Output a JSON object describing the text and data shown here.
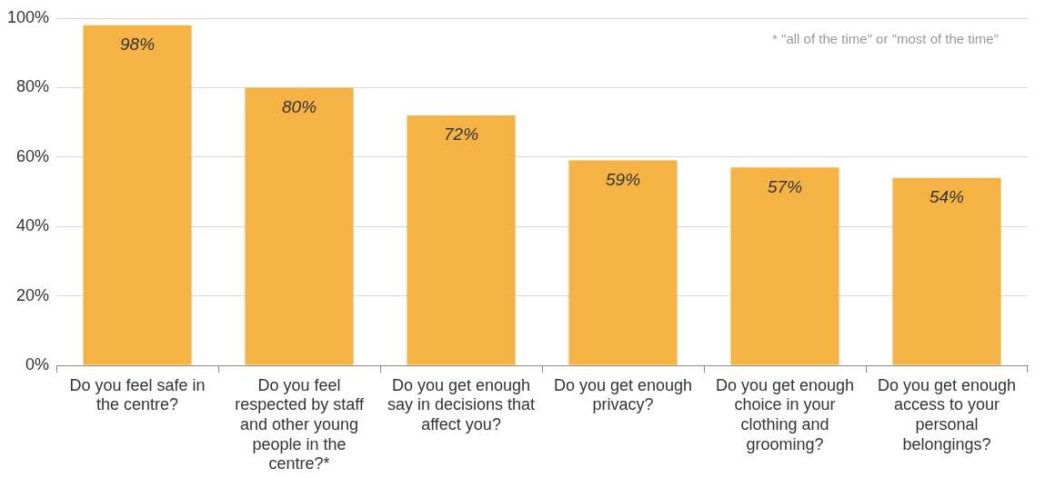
{
  "chart_data": {
    "type": "bar",
    "categories": [
      "Do you feel safe in the centre?",
      "Do you feel respected by staff and other young people in the centre?*",
      "Do you get enough say in decisions that affect you?",
      "Do you get enough privacy?",
      "Do you get enough choice in your clothing and grooming?",
      "Do you get enough access to your personal belongings?"
    ],
    "values": [
      98,
      80,
      72,
      59,
      57,
      54
    ],
    "value_labels": [
      "98%",
      "80%",
      "72%",
      "59%",
      "57%",
      "54%"
    ],
    "color": "#f5b345",
    "ylim": [
      0,
      100
    ],
    "yticks": [
      {
        "value": 0,
        "label": "0%"
      },
      {
        "value": 20,
        "label": "20%"
      },
      {
        "value": 40,
        "label": "40%"
      },
      {
        "value": 60,
        "label": "60%"
      },
      {
        "value": 80,
        "label": "80%"
      },
      {
        "value": 100,
        "label": "100%"
      }
    ],
    "grid": "y",
    "legend": false,
    "annotations": [
      "* \"all of the time\" or \"most of the time\""
    ]
  }
}
